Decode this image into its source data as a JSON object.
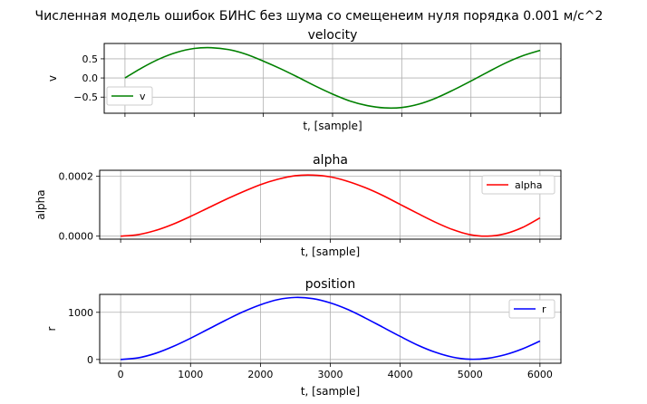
{
  "figure": {
    "suptitle": "Численная модель ошибок БИНС без шума со смещенеим нуля порядка 0.001 м/с^2"
  },
  "chart_data": [
    {
      "type": "line",
      "title": "velocity",
      "xlabel": "t, [sample]",
      "ylabel": "v",
      "xlim": [
        -300,
        6300
      ],
      "ylim": [
        -0.92,
        0.9
      ],
      "grid": true,
      "legend": "lower-left",
      "x_ticks": [
        0,
        1000,
        2000,
        3000,
        4000,
        5000,
        6000
      ],
      "y_ticks": [
        0.5,
        0.0,
        -0.5
      ],
      "y_tick_labels": [
        "0.5",
        "0.0",
        "−0.5"
      ],
      "show_x_tick_labels": false,
      "series": [
        {
          "name": "v",
          "color": "#008000",
          "x": [
            0,
            250,
            500,
            750,
            1000,
            1250,
            1500,
            1750,
            2000,
            2250,
            2500,
            2750,
            3000,
            3250,
            3500,
            3750,
            4000,
            4250,
            4500,
            4750,
            5000,
            5250,
            5500,
            5750,
            6000
          ],
          "y": [
            0.0,
            0.27,
            0.5,
            0.67,
            0.77,
            0.79,
            0.74,
            0.62,
            0.44,
            0.24,
            0.02,
            -0.21,
            -0.42,
            -0.6,
            -0.72,
            -0.78,
            -0.77,
            -0.68,
            -0.52,
            -0.31,
            -0.08,
            0.16,
            0.39,
            0.58,
            0.72
          ]
        }
      ]
    },
    {
      "type": "line",
      "title": "alpha",
      "xlabel": "t, [sample]",
      "ylabel": "alpha",
      "xlim": [
        -300,
        6300
      ],
      "ylim": [
        -1e-05,
        0.00022
      ],
      "grid": true,
      "legend": "upper-right",
      "x_ticks": [
        0,
        1000,
        2000,
        3000,
        4000,
        5000,
        6000
      ],
      "y_ticks": [
        0.0002,
        0.0
      ],
      "y_tick_labels": [
        "0.0002",
        "0.0000"
      ],
      "show_x_tick_labels": false,
      "series": [
        {
          "name": "alpha",
          "color": "#ff0000",
          "x": [
            0,
            250,
            500,
            750,
            1000,
            1250,
            1500,
            1750,
            2000,
            2250,
            2500,
            2750,
            3000,
            3250,
            3500,
            3750,
            4000,
            4250,
            4500,
            4750,
            5000,
            5250,
            5500,
            5750,
            6000
          ],
          "y": [
            0.0,
            5e-06,
            1.9e-05,
            4e-05,
            6.6e-05,
            9.4e-05,
            0.000122,
            0.000148,
            0.000172,
            0.00019,
            0.000202,
            0.000204,
            0.000198,
            0.000183,
            0.000162,
            0.000136,
            0.000106,
            7.6e-05,
            4.7e-05,
            2.2e-05,
            5e-06,
            0.0,
            8e-06,
            2.9e-05,
            6.1e-05
          ]
        }
      ]
    },
    {
      "type": "line",
      "title": "position",
      "xlabel": "t, [sample]",
      "ylabel": "r",
      "xlim": [
        -300,
        6300
      ],
      "ylim": [
        -80,
        1380
      ],
      "grid": true,
      "legend": "upper-right",
      "x_ticks": [
        0,
        1000,
        2000,
        3000,
        4000,
        5000,
        6000
      ],
      "x_tick_labels": [
        "0",
        "1000",
        "2000",
        "3000",
        "4000",
        "5000",
        "6000"
      ],
      "y_ticks": [
        1000,
        0
      ],
      "y_tick_labels": [
        "1000",
        "0"
      ],
      "show_x_tick_labels": true,
      "series": [
        {
          "name": "r",
          "color": "#0000ff",
          "x": [
            0,
            250,
            500,
            750,
            1000,
            1250,
            1500,
            1750,
            2000,
            2250,
            2500,
            2750,
            3000,
            3250,
            3500,
            3750,
            4000,
            4250,
            4500,
            4750,
            5000,
            5250,
            5500,
            5750,
            6000
          ],
          "y": [
            0,
            34,
            130,
            275,
            450,
            640,
            830,
            1010,
            1160,
            1270,
            1315,
            1290,
            1200,
            1060,
            880,
            685,
            490,
            305,
            155,
            50,
            5,
            25,
            100,
            225,
            390
          ]
        }
      ]
    }
  ]
}
